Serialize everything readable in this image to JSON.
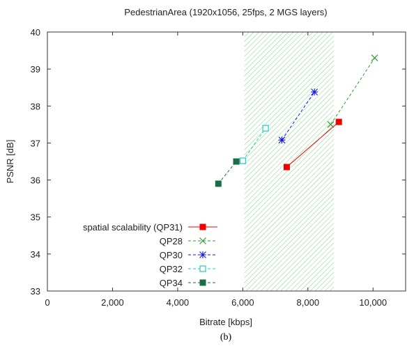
{
  "chart_data": {
    "type": "line",
    "title": "PedestrianArea (1920x1056, 25fps, 2 MGS layers)",
    "xlabel": "Bitrate [kbps]",
    "ylabel": "PSNR [dB]",
    "caption": "(b)",
    "xlim": [
      0,
      11000
    ],
    "ylim": [
      33,
      40
    ],
    "xticks": [
      0,
      2000,
      4000,
      6000,
      8000,
      10000
    ],
    "xtick_labels": [
      "0",
      "2,000",
      "4,000",
      "6,000",
      "8,000",
      "10,000"
    ],
    "yticks": [
      33,
      34,
      35,
      36,
      37,
      38,
      39,
      40
    ],
    "ytick_labels": [
      "33",
      "34",
      "35",
      "36",
      "37",
      "38",
      "39",
      "40"
    ],
    "grid": false,
    "legend_position": "bottom-left",
    "shaded_region": {
      "x": [
        6050,
        8800
      ],
      "color": "#4cbf4c"
    },
    "series": [
      {
        "name": "spatial scalability (QP31)",
        "color": "#ee0000",
        "marker": "filled-square",
        "dash": "solid",
        "points": [
          [
            7350,
            36.35
          ],
          [
            8950,
            37.57
          ]
        ]
      },
      {
        "name": "QP28",
        "color": "#2e9e2e",
        "marker": "x",
        "dash": "dashed",
        "points": [
          [
            8700,
            37.5
          ],
          [
            10050,
            39.3
          ]
        ]
      },
      {
        "name": "QP30",
        "color": "#1414e0",
        "marker": "star",
        "dash": "dashed",
        "points": [
          [
            7200,
            37.08
          ],
          [
            8200,
            38.38
          ]
        ]
      },
      {
        "name": "QP32",
        "color": "#22c8c8",
        "marker": "open-square",
        "dash": "dashed",
        "points": [
          [
            6000,
            36.52
          ],
          [
            6700,
            37.4
          ]
        ]
      },
      {
        "name": "QP34",
        "color": "#1a6e46",
        "marker": "filled-square",
        "dash": "dashed",
        "points": [
          [
            5250,
            35.9
          ],
          [
            5800,
            36.5
          ]
        ]
      }
    ]
  }
}
